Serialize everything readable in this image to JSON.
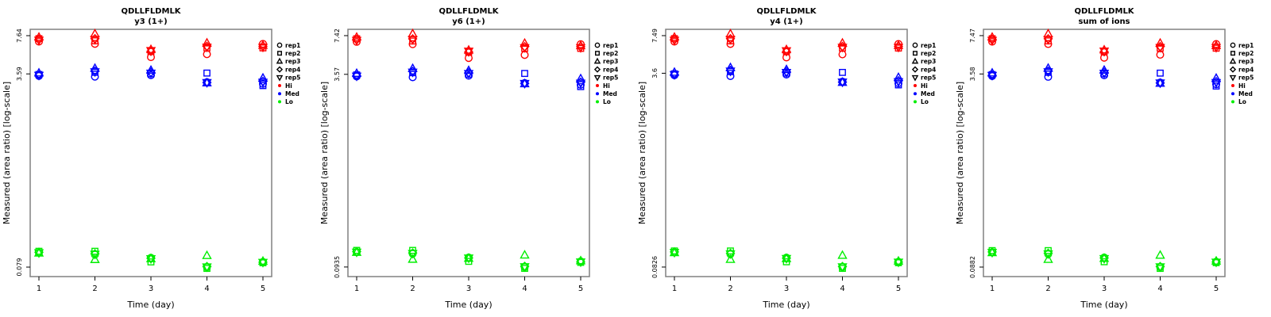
{
  "figure": {
    "peptide": "QDLLFLDMLK",
    "xlabel": "Time (day)",
    "ylabel": "Measured (area ratio) [log-scale]",
    "x_ticks": [
      "1",
      "2",
      "3",
      "4",
      "5"
    ],
    "colors": {
      "hi": "#FF0000",
      "med": "#0000FF",
      "lo": "#00EE00",
      "box": "#808080",
      "tick": "#000000",
      "legend_symbol": "#000000"
    },
    "legend": {
      "reps": [
        {
          "label": "rep1",
          "shape": "circle"
        },
        {
          "label": "rep2",
          "shape": "square"
        },
        {
          "label": "rep3",
          "shape": "triangle-up"
        },
        {
          "label": "rep4",
          "shape": "diamond"
        },
        {
          "label": "rep5",
          "shape": "triangle-down"
        }
      ],
      "levels": [
        {
          "label": "Hi",
          "color": "#FF0000"
        },
        {
          "label": "Med",
          "color": "#0000FF"
        },
        {
          "label": "Lo",
          "color": "#00EE00"
        }
      ]
    }
  },
  "chart_data": [
    {
      "type": "scatter",
      "title": "QDLLFLDMLK",
      "subtitle": "y3 (1+)",
      "xlabel": "Time (day)",
      "ylabel": "Measured (area ratio) [log-scale]",
      "x": [
        1,
        2,
        3,
        4,
        5
      ],
      "y_scale": "log",
      "y_ticks": [
        "7.64",
        "3.59",
        "0.079"
      ],
      "ylim": [
        0.0655,
        8.66
      ],
      "series": [
        {
          "level": "Hi",
          "rep": "rep1",
          "shape": "circle",
          "color": "#FF0000",
          "values": [
            6.8,
            6.5,
            5.0,
            5.3,
            6.5
          ]
        },
        {
          "level": "Hi",
          "rep": "rep2",
          "shape": "square",
          "color": "#FF0000",
          "values": [
            7.2,
            6.9,
            5.6,
            6.0,
            6.0
          ]
        },
        {
          "level": "Hi",
          "rep": "rep3",
          "shape": "triangle-up",
          "color": "#FF0000",
          "values": [
            7.4,
            7.9,
            5.8,
            6.6,
            6.3
          ]
        },
        {
          "level": "Hi",
          "rep": "rep4",
          "shape": "diamond",
          "color": "#FF0000",
          "values": [
            7.1,
            7.2,
            5.6,
            6.2,
            6.2
          ]
        },
        {
          "level": "Hi",
          "rep": "rep5",
          "shape": "triangle-down",
          "color": "#FF0000",
          "values": [
            7.0,
            7.1,
            5.7,
            6.1,
            6.1
          ]
        },
        {
          "level": "Med",
          "rep": "rep1",
          "shape": "circle",
          "color": "#0000FF",
          "values": [
            3.45,
            3.4,
            3.5,
            3.05,
            2.95
          ]
        },
        {
          "level": "Med",
          "rep": "rep2",
          "shape": "square",
          "color": "#0000FF",
          "values": [
            3.55,
            3.7,
            3.6,
            3.65,
            2.85
          ]
        },
        {
          "level": "Med",
          "rep": "rep3",
          "shape": "triangle-up",
          "color": "#0000FF",
          "values": [
            3.65,
            4.0,
            3.85,
            3.0,
            3.3
          ]
        },
        {
          "level": "Med",
          "rep": "rep4",
          "shape": "diamond",
          "color": "#0000FF",
          "values": [
            3.5,
            3.8,
            3.7,
            3.02,
            3.1
          ]
        },
        {
          "level": "Med",
          "rep": "rep5",
          "shape": "triangle-down",
          "color": "#0000FF",
          "values": [
            3.5,
            3.75,
            3.65,
            3.03,
            3.05
          ]
        },
        {
          "level": "Lo",
          "rep": "rep1",
          "shape": "circle",
          "color": "#00EE00",
          "values": [
            0.105,
            0.101,
            0.095,
            0.079,
            0.0875
          ]
        },
        {
          "level": "Lo",
          "rep": "rep2",
          "shape": "square",
          "color": "#00EE00",
          "values": [
            0.108,
            0.108,
            0.0875,
            0.077,
            0.086
          ]
        },
        {
          "level": "Lo",
          "rep": "rep3",
          "shape": "triangle-up",
          "color": "#00EE00",
          "values": [
            0.104,
            0.0915,
            0.093,
            0.099,
            0.0885
          ]
        },
        {
          "level": "Lo",
          "rep": "rep4",
          "shape": "diamond",
          "color": "#00EE00",
          "values": [
            0.106,
            0.103,
            0.094,
            0.08,
            0.087
          ]
        },
        {
          "level": "Lo",
          "rep": "rep5",
          "shape": "triangle-down",
          "color": "#00EE00",
          "values": [
            0.105,
            0.102,
            0.0935,
            0.0795,
            0.087
          ]
        }
      ]
    },
    {
      "type": "scatter",
      "title": "QDLLFLDMLK",
      "subtitle": "y6 (1+)",
      "xlabel": "Time (day)",
      "ylabel": "Measured (area ratio) [log-scale]",
      "x": [
        1,
        2,
        3,
        4,
        5
      ],
      "y_scale": "log",
      "y_ticks": [
        "7.42",
        "3.57",
        "0.0935"
      ],
      "ylim": [
        0.078,
        8.36
      ],
      "series": [
        {
          "level": "Hi",
          "rep": "rep1",
          "shape": "circle",
          "color": "#FF0000",
          "values": [
            6.6,
            6.31,
            4.86,
            5.15,
            6.31
          ]
        },
        {
          "level": "Hi",
          "rep": "rep2",
          "shape": "square",
          "color": "#FF0000",
          "values": [
            6.99,
            6.7,
            5.44,
            5.83,
            5.83
          ]
        },
        {
          "level": "Hi",
          "rep": "rep3",
          "shape": "triangle-up",
          "color": "#FF0000",
          "values": [
            7.19,
            7.67,
            5.63,
            6.41,
            6.12
          ]
        },
        {
          "level": "Hi",
          "rep": "rep4",
          "shape": "diamond",
          "color": "#FF0000",
          "values": [
            6.9,
            6.99,
            5.44,
            6.02,
            6.02
          ]
        },
        {
          "level": "Hi",
          "rep": "rep5",
          "shape": "triangle-down",
          "color": "#FF0000",
          "values": [
            6.8,
            6.9,
            5.54,
            5.92,
            5.92
          ]
        },
        {
          "level": "Med",
          "rep": "rep1",
          "shape": "circle",
          "color": "#0000FF",
          "values": [
            3.43,
            3.38,
            3.48,
            3.03,
            2.93
          ]
        },
        {
          "level": "Med",
          "rep": "rep2",
          "shape": "square",
          "color": "#0000FF",
          "values": [
            3.53,
            3.68,
            3.58,
            3.63,
            2.83
          ]
        },
        {
          "level": "Med",
          "rep": "rep3",
          "shape": "triangle-up",
          "color": "#0000FF",
          "values": [
            3.63,
            3.98,
            3.83,
            2.98,
            3.28
          ]
        },
        {
          "level": "Med",
          "rep": "rep4",
          "shape": "diamond",
          "color": "#0000FF",
          "values": [
            3.48,
            3.78,
            3.68,
            3.0,
            3.08
          ]
        },
        {
          "level": "Med",
          "rep": "rep5",
          "shape": "triangle-down",
          "color": "#0000FF",
          "values": [
            3.46,
            3.73,
            3.63,
            3.01,
            3.03
          ]
        },
        {
          "level": "Lo",
          "rep": "rep1",
          "shape": "circle",
          "color": "#00EE00",
          "values": [
            0.124,
            0.12,
            0.112,
            0.0935,
            0.104
          ]
        },
        {
          "level": "Lo",
          "rep": "rep2",
          "shape": "square",
          "color": "#00EE00",
          "values": [
            0.128,
            0.128,
            0.104,
            0.0911,
            0.102
          ]
        },
        {
          "level": "Lo",
          "rep": "rep3",
          "shape": "triangle-up",
          "color": "#00EE00",
          "values": [
            0.123,
            0.108,
            0.11,
            0.117,
            0.105
          ]
        },
        {
          "level": "Lo",
          "rep": "rep4",
          "shape": "diamond",
          "color": "#00EE00",
          "values": [
            0.125,
            0.122,
            0.111,
            0.0947,
            0.103
          ]
        },
        {
          "level": "Lo",
          "rep": "rep5",
          "shape": "triangle-down",
          "color": "#00EE00",
          "values": [
            0.124,
            0.121,
            0.111,
            0.0941,
            0.103
          ]
        }
      ]
    },
    {
      "type": "scatter",
      "title": "QDLLFLDMLK",
      "subtitle": "y4 (1+)",
      "xlabel": "Time (day)",
      "ylabel": "Measured (area ratio) [log-scale]",
      "x": [
        1,
        2,
        3,
        4,
        5
      ],
      "y_scale": "log",
      "y_ticks": [
        "7.49",
        "3.6",
        "0.0826"
      ],
      "ylim": [
        0.0686,
        8.47
      ],
      "series": [
        {
          "level": "Hi",
          "rep": "rep1",
          "shape": "circle",
          "color": "#FF0000",
          "values": [
            6.67,
            6.37,
            4.9,
            5.2,
            6.37
          ]
        },
        {
          "level": "Hi",
          "rep": "rep2",
          "shape": "square",
          "color": "#FF0000",
          "values": [
            7.06,
            6.76,
            5.49,
            5.88,
            5.88
          ]
        },
        {
          "level": "Hi",
          "rep": "rep3",
          "shape": "triangle-up",
          "color": "#FF0000",
          "values": [
            7.25,
            7.74,
            5.69,
            6.47,
            6.18
          ]
        },
        {
          "level": "Hi",
          "rep": "rep4",
          "shape": "diamond",
          "color": "#FF0000",
          "values": [
            6.96,
            7.06,
            5.49,
            6.08,
            6.08
          ]
        },
        {
          "level": "Hi",
          "rep": "rep5",
          "shape": "triangle-down",
          "color": "#FF0000",
          "values": [
            6.86,
            6.96,
            5.59,
            5.98,
            5.98
          ]
        },
        {
          "level": "Med",
          "rep": "rep1",
          "shape": "circle",
          "color": "#0000FF",
          "values": [
            3.46,
            3.41,
            3.51,
            3.06,
            2.96
          ]
        },
        {
          "level": "Med",
          "rep": "rep2",
          "shape": "square",
          "color": "#0000FF",
          "values": [
            3.56,
            3.71,
            3.61,
            3.66,
            2.87
          ]
        },
        {
          "level": "Med",
          "rep": "rep3",
          "shape": "triangle-up",
          "color": "#0000FF",
          "values": [
            3.66,
            4.01,
            3.86,
            3.01,
            3.31
          ]
        },
        {
          "level": "Med",
          "rep": "rep4",
          "shape": "diamond",
          "color": "#0000FF",
          "values": [
            3.51,
            3.81,
            3.71,
            3.03,
            3.11
          ]
        },
        {
          "level": "Med",
          "rep": "rep5",
          "shape": "triangle-down",
          "color": "#0000FF",
          "values": [
            3.51,
            3.76,
            3.66,
            3.04,
            3.06
          ]
        },
        {
          "level": "Lo",
          "rep": "rep1",
          "shape": "circle",
          "color": "#00EE00",
          "values": [
            0.11,
            0.106,
            0.0993,
            0.0826,
            0.0915
          ]
        },
        {
          "level": "Lo",
          "rep": "rep2",
          "shape": "square",
          "color": "#00EE00",
          "values": [
            0.113,
            0.113,
            0.0915,
            0.0805,
            0.0899
          ]
        },
        {
          "level": "Lo",
          "rep": "rep3",
          "shape": "triangle-up",
          "color": "#00EE00",
          "values": [
            0.109,
            0.0957,
            0.0972,
            0.1035,
            0.0925
          ]
        },
        {
          "level": "Lo",
          "rep": "rep4",
          "shape": "diamond",
          "color": "#00EE00",
          "values": [
            0.111,
            0.108,
            0.0983,
            0.0836,
            0.091
          ]
        },
        {
          "level": "Lo",
          "rep": "rep5",
          "shape": "triangle-down",
          "color": "#00EE00",
          "values": [
            0.11,
            0.107,
            0.0978,
            0.0831,
            0.091
          ]
        }
      ]
    },
    {
      "type": "scatter",
      "title": "QDLLFLDMLK",
      "subtitle": "sum of ions",
      "xlabel": "Time (day)",
      "ylabel": "Measured (area ratio) [log-scale]",
      "x": [
        1,
        2,
        3,
        4,
        5
      ],
      "y_scale": "log",
      "y_ticks": [
        "7.47",
        "3.58",
        "0.0882"
      ],
      "ylim": [
        0.0735,
        8.43
      ],
      "series": [
        {
          "level": "Hi",
          "rep": "rep1",
          "shape": "circle",
          "color": "#FF0000",
          "values": [
            6.65,
            6.36,
            4.89,
            5.18,
            6.36
          ]
        },
        {
          "level": "Hi",
          "rep": "rep2",
          "shape": "square",
          "color": "#FF0000",
          "values": [
            7.04,
            6.75,
            5.48,
            5.87,
            5.87
          ]
        },
        {
          "level": "Hi",
          "rep": "rep3",
          "shape": "triangle-up",
          "color": "#FF0000",
          "values": [
            7.23,
            7.72,
            5.67,
            6.45,
            6.16
          ]
        },
        {
          "level": "Hi",
          "rep": "rep4",
          "shape": "diamond",
          "color": "#FF0000",
          "values": [
            6.94,
            7.04,
            5.48,
            6.06,
            6.06
          ]
        },
        {
          "level": "Hi",
          "rep": "rep5",
          "shape": "triangle-down",
          "color": "#FF0000",
          "values": [
            6.84,
            6.94,
            5.57,
            5.96,
            5.96
          ]
        },
        {
          "level": "Med",
          "rep": "rep1",
          "shape": "circle",
          "color": "#0000FF",
          "values": [
            3.44,
            3.39,
            3.49,
            3.04,
            2.94
          ]
        },
        {
          "level": "Med",
          "rep": "rep2",
          "shape": "square",
          "color": "#0000FF",
          "values": [
            3.54,
            3.69,
            3.59,
            3.64,
            2.84
          ]
        },
        {
          "level": "Med",
          "rep": "rep3",
          "shape": "triangle-up",
          "color": "#0000FF",
          "values": [
            3.64,
            3.99,
            3.84,
            2.99,
            3.29
          ]
        },
        {
          "level": "Med",
          "rep": "rep4",
          "shape": "diamond",
          "color": "#0000FF",
          "values": [
            3.49,
            3.79,
            3.69,
            3.01,
            3.09
          ]
        },
        {
          "level": "Med",
          "rep": "rep5",
          "shape": "triangle-down",
          "color": "#0000FF",
          "values": [
            3.49,
            3.74,
            3.64,
            3.02,
            3.04
          ]
        },
        {
          "level": "Lo",
          "rep": "rep1",
          "shape": "circle",
          "color": "#00EE00",
          "values": [
            0.117,
            0.113,
            0.106,
            0.0882,
            0.0977
          ]
        },
        {
          "level": "Lo",
          "rep": "rep2",
          "shape": "square",
          "color": "#00EE00",
          "values": [
            0.121,
            0.121,
            0.0977,
            0.086,
            0.096
          ]
        },
        {
          "level": "Lo",
          "rep": "rep3",
          "shape": "triangle-up",
          "color": "#00EE00",
          "values": [
            0.116,
            0.102,
            0.104,
            0.1105,
            0.0988
          ]
        },
        {
          "level": "Lo",
          "rep": "rep4",
          "shape": "diamond",
          "color": "#00EE00",
          "values": [
            0.118,
            0.115,
            0.105,
            0.0893,
            0.0971
          ]
        },
        {
          "level": "Lo",
          "rep": "rep5",
          "shape": "triangle-down",
          "color": "#00EE00",
          "values": [
            0.117,
            0.114,
            0.104,
            0.0888,
            0.0971
          ]
        }
      ]
    }
  ]
}
